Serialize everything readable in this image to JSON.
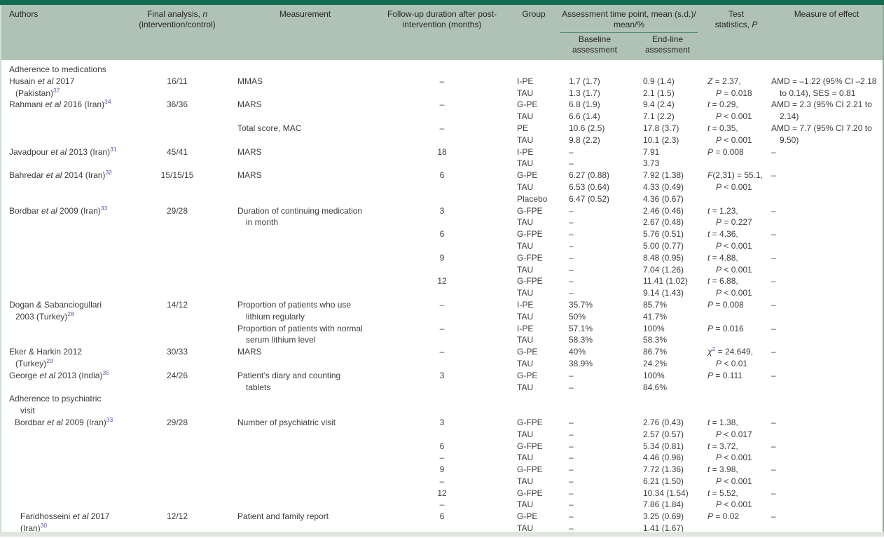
{
  "colors": {
    "top_bar": "#146c50",
    "header_bg": "#b0c2b6",
    "assessment_underline": "#518c70",
    "reference_superscript": "#5a58a0",
    "body_text": "#3d3d3d",
    "footer_strip": "#e0e5e0"
  },
  "colkeys": [
    "authors",
    "final_n",
    "measurement",
    "followup",
    "group",
    "baseline",
    "endline",
    "test",
    "effect"
  ],
  "header": {
    "authors": "Authors",
    "final_n": "Final analysis, *n*\n(intervention/control)",
    "measurement": "Measurement",
    "followup": "Follow-up duration after post-\nintervention (months)",
    "group": "Group",
    "assessment": "Assessment time point, mean (s.d.)/\nmean/%",
    "baseline": "Baseline\nassessment",
    "endline": "End-line\nassessment",
    "test": "Test\nstatistics, *P*",
    "effect": "Measure of effect"
  },
  "rows": [
    {
      "section": "Adherence to medications"
    },
    {
      "indent": 0,
      "cells": [
        "Husain *et al* 2017\n(Pakistan)^37^",
        "16/11",
        "MMAS",
        "–",
        "I-PE\nTAU",
        "1.7 (1.7)\n1.3 (1.7)",
        "0.9 (1.4)\n2.1 (1.5)",
        "*Z* = 2.37,\n*P* = 0.018",
        "AMD = –1.22 (95% CI –2.18\nto 0.14), SES = 0.81"
      ]
    },
    {
      "indent": 0,
      "cells": [
        "Rahmani *et al* 2016 (Iran)^34^",
        "36/36",
        "MARS",
        "–",
        "G-PE\nTAU",
        "6.8 (1.9)\n6.6 (1.4)",
        "9.4 (2.4)\n7.1 (2.2)",
        "*t* = 0.29,\n*P* < 0.001",
        "AMD = 2.3 (95% CI 2.21 to\n2.14)"
      ]
    },
    {
      "indent": 0,
      "cells": [
        "",
        "",
        "Total score, MAC",
        "–",
        "PE\nTAU",
        "10.6 (2.5)\n9.8 (2.2)",
        "17.8 (3.7)\n10.1 (2.3)",
        "*t* = 0.35,\n*P* < 0.001",
        "AMD = 7.7 (95% CI 7.20 to\n9.50)"
      ]
    },
    {
      "indent": 0,
      "cells": [
        "Javadpour *et al* 2013 (Iran)^31^",
        "45/41",
        "MARS",
        "18",
        "I-PE\nTAU",
        "–\n–",
        "7.91\n3.73",
        "*P* = 0.008",
        "–"
      ]
    },
    {
      "indent": 0,
      "cells": [
        "Bahredar *et al* 2014 (Iran)^32^",
        "15/15/15",
        "MARS",
        "6",
        "G-PE\nTAU\nPlacebo",
        "6.27 (0.88)\n6.53 (0.64)\n6.47 (0.52)",
        "7.92 (1.38)\n4.33 (0.49)\n4.36 (0.67)",
        "*F*(2,31) = 55.1,\n*P* < 0.001",
        "–"
      ]
    },
    {
      "indent": 0,
      "cells": [
        "Bordbar *et al* 2009 (Iran)^33^",
        "29/28",
        "Duration of continuing medication\nin month",
        "3",
        "G-FPE\nTAU",
        "–\n–",
        "2.46 (0.46)\n2.67 (0.48)",
        "*t* = 1.23,\n*P* = 0.227",
        "–"
      ]
    },
    {
      "indent": 0,
      "cells": [
        "",
        "",
        "",
        "6",
        "G-FPE\nTAU",
        "–\n–",
        "5.76 (0.51)\n5.00 (0.77)",
        "*t* = 4.36,\n*P* < 0.001",
        "–"
      ]
    },
    {
      "indent": 0,
      "cells": [
        "",
        "",
        "",
        "9",
        "G-FPE\nTAU",
        "–\n–",
        "8.48 (0.95)\n7.04 (1.26)",
        "*t* = 4.88,\n*P* < 0.001",
        "–"
      ]
    },
    {
      "indent": 0,
      "cells": [
        "",
        "",
        "",
        "12",
        "G-FPE\nTAU",
        "–\n–",
        "11.41 (1.02)\n9.14 (1.43)",
        "*t* = 6.88,\n*P* < 0.001",
        "–"
      ]
    },
    {
      "indent": 0,
      "cells": [
        "Dogan & Sabanciogullari\n2003 (Turkey)^28^",
        "14/12",
        "Proportion of patients who use\nlithium regularly",
        "–",
        "I-PE\nTAU",
        "35.7%\n50%",
        "85.7%\n41.7%",
        "*P* = 0.008",
        "–"
      ]
    },
    {
      "indent": 0,
      "cells": [
        "",
        "",
        "Proportion of patients with normal\nserum lithium level",
        "–",
        "I-PE\nTAU",
        "57.1%\n58.3%",
        "100%\n58.3%",
        "*P* = 0.016",
        "–"
      ]
    },
    {
      "indent": 0,
      "cells": [
        "Eker & Harkin 2012\n(Turkey)^29^",
        "30/33",
        "MARS",
        "–",
        "G-PE\nTAU",
        "40%\n38.9%",
        "86.7%\n24.2%",
        "*χ*^2^ = 24.649,\n*P* < 0.01",
        "–"
      ]
    },
    {
      "indent": 0,
      "cells": [
        "George *et al* 2013 (India)^35^",
        "24/26",
        "Patient’s diary and counting\ntablets",
        "3",
        "G-PE\nTAU",
        "–\n–",
        "100%\n84.6%",
        "*P* = 0.111",
        "–"
      ]
    },
    {
      "section": "Adherence to psychiatric\nvisit"
    },
    {
      "indent": 1,
      "cells": [
        "Bordbar *et al* 2009 (Iran)^33^",
        "29/28",
        "Number of psychiatric visit",
        "3",
        "G-FPE\nTAU",
        "–\n–",
        "2.76 (0.43)\n2.57 (0.57)",
        "*t* = 1.38,\n*P* < 0.017",
        "–"
      ]
    },
    {
      "indent": 0,
      "cells": [
        "",
        "",
        "",
        "6\n–",
        "G-FPE\nTAU",
        "–\n–",
        "5.34 (0.81)\n4.46 (0.96)",
        "*t* = 3.72,\n*P* < 0.001",
        "–"
      ]
    },
    {
      "indent": 0,
      "cells": [
        "",
        "",
        "",
        "9\n–",
        "G-FPE\nTAU",
        "–\n–",
        "7.72 (1.36)\n6.21 (1.50)",
        "*t* = 3.98,\n*P* < 0.001",
        "–"
      ]
    },
    {
      "indent": 0,
      "cells": [
        "",
        "",
        "",
        "12\n–",
        "G-FPE\nTAU",
        "–\n–",
        "10.34 (1.54)\n7.86 (1.84)",
        "*t* = 5.52,\n*P* < 0.001",
        "–"
      ]
    },
    {
      "indent": 2,
      "cells": [
        "Faridhosseini *et al* 2017\n(Iran)^30^",
        "12/12",
        "Patient and family report",
        "6",
        "G-PE\nTAU",
        "–\n–",
        "3.25 (0.69)\n1.41 (1.67)",
        "*P* = 0.02",
        "–"
      ]
    }
  ]
}
